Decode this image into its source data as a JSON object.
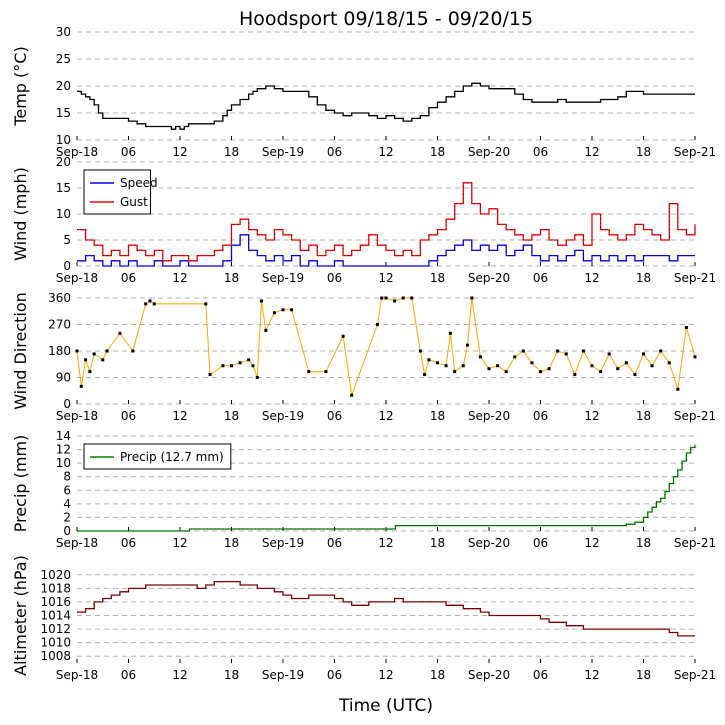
{
  "title": "Hoodsport 09/18/15 - 09/20/15",
  "x_axis": {
    "label": "Time (UTC)",
    "range_hours": [
      0,
      72
    ],
    "tick_labels": [
      "Sep-18",
      "06",
      "12",
      "18",
      "Sep-19",
      "06",
      "12",
      "18",
      "Sep-20",
      "06",
      "12",
      "18",
      "Sep-21"
    ]
  },
  "colors": {
    "temp": "#000000",
    "speed": "#0000ff",
    "gust": "#ff0000",
    "direction": "#ffa500",
    "precip": "#008000",
    "altimeter": "#8b0000",
    "grid": "#b0b0b0"
  },
  "chart_data": [
    {
      "type": "line",
      "ylabel": "Temp (°C)",
      "ylim": [
        10,
        30
      ],
      "yticks": [
        "10",
        "15",
        "20",
        "25",
        "30"
      ],
      "series": [
        {
          "name": "Temp",
          "color": "#000000",
          "x": [
            0,
            0.5,
            1,
            1.5,
            2,
            2.5,
            3,
            4,
            5,
            6,
            7,
            8,
            9,
            10,
            11,
            11.5,
            12,
            12.5,
            13,
            14,
            15,
            16,
            17,
            17.5,
            18,
            19,
            20,
            20.5,
            21,
            22,
            23,
            24,
            25,
            26,
            27,
            28,
            29,
            30,
            31,
            32,
            33,
            34,
            35,
            36,
            37,
            38,
            39,
            40,
            41,
            42,
            43,
            44,
            45,
            46,
            47,
            48,
            49,
            50,
            51,
            52,
            53,
            54,
            55,
            56,
            57,
            58,
            59,
            60,
            61,
            62,
            63,
            64,
            65,
            66,
            67,
            68,
            69,
            70,
            71,
            72
          ],
          "y": [
            19,
            18.5,
            18,
            17.5,
            16.5,
            15,
            14,
            14,
            14,
            13.5,
            13,
            12.5,
            12.5,
            12.5,
            12,
            12.5,
            12,
            12.5,
            13,
            13,
            13,
            13.5,
            14.5,
            15.5,
            16.5,
            17.5,
            18.5,
            19,
            19.5,
            20,
            19.5,
            19,
            19,
            19,
            18,
            16.5,
            15.5,
            15,
            14.5,
            15,
            15,
            14.5,
            14,
            14.5,
            14,
            13.5,
            14,
            14.5,
            16,
            17,
            18,
            19,
            20,
            20.5,
            20,
            19.5,
            19.5,
            19.5,
            18.5,
            17.5,
            17,
            17,
            17,
            17.5,
            17,
            17,
            17,
            17,
            17.5,
            17.5,
            18,
            19,
            19,
            18.5,
            18.5,
            18.5,
            18.5,
            18.5,
            18.5,
            18.5
          ]
        }
      ]
    },
    {
      "type": "line",
      "ylabel": "Wind (mph)",
      "ylim": [
        0,
        20
      ],
      "yticks": [
        "0",
        "5",
        "10",
        "15",
        "20"
      ],
      "legend": [
        "Speed",
        "Gust"
      ],
      "series": [
        {
          "name": "Speed",
          "color": "#0000ff",
          "x": [
            0,
            1,
            2,
            3,
            4,
            5,
            6,
            7,
            8,
            9,
            10,
            11,
            12,
            13,
            14,
            15,
            16,
            17,
            18,
            19,
            20,
            21,
            22,
            23,
            24,
            25,
            26,
            27,
            28,
            29,
            30,
            31,
            32,
            33,
            34,
            35,
            36,
            37,
            38,
            39,
            40,
            41,
            42,
            43,
            44,
            45,
            46,
            47,
            48,
            49,
            50,
            51,
            52,
            53,
            54,
            55,
            56,
            57,
            58,
            59,
            60,
            61,
            62,
            63,
            64,
            65,
            66,
            67,
            68,
            69,
            70,
            71,
            72
          ],
          "y": [
            1,
            2,
            1,
            0,
            1,
            0,
            1,
            0,
            0,
            1,
            0,
            0,
            1,
            0,
            0,
            0,
            0,
            1,
            4,
            6,
            3,
            2,
            1,
            2,
            1,
            2,
            0,
            1,
            0,
            0,
            1,
            0,
            0,
            0,
            0,
            0,
            0,
            0,
            0,
            0,
            0,
            1,
            2,
            3,
            4,
            5,
            3,
            4,
            3,
            4,
            2,
            3,
            4,
            2,
            1,
            2,
            1,
            2,
            3,
            1,
            2,
            1,
            2,
            1,
            2,
            1,
            2,
            2,
            2,
            1,
            2,
            2,
            2
          ]
        },
        {
          "name": "Gust",
          "color": "#ff0000",
          "x": [
            0,
            1,
            2,
            3,
            4,
            5,
            6,
            7,
            8,
            9,
            10,
            11,
            12,
            13,
            14,
            15,
            16,
            17,
            18,
            19,
            20,
            21,
            22,
            23,
            24,
            25,
            26,
            27,
            28,
            29,
            30,
            31,
            32,
            33,
            34,
            35,
            36,
            37,
            38,
            39,
            40,
            41,
            42,
            43,
            44,
            45,
            46,
            47,
            48,
            49,
            50,
            51,
            52,
            53,
            54,
            55,
            56,
            57,
            58,
            59,
            60,
            61,
            62,
            63,
            64,
            65,
            66,
            67,
            68,
            69,
            70,
            71,
            72
          ],
          "y": [
            7,
            5,
            4,
            2,
            3,
            2,
            4,
            3,
            2,
            3,
            1,
            2,
            2,
            1,
            2,
            2,
            3,
            4,
            8,
            9,
            7,
            6,
            5,
            7,
            6,
            5,
            3,
            4,
            2,
            3,
            4,
            2,
            3,
            4,
            6,
            4,
            3,
            2,
            3,
            2,
            5,
            6,
            7,
            9,
            12,
            16,
            12,
            10,
            11,
            8,
            7,
            6,
            5,
            6,
            7,
            5,
            4,
            5,
            6,
            4,
            10,
            7,
            6,
            5,
            6,
            8,
            7,
            6,
            5,
            12,
            7,
            6,
            8
          ]
        }
      ]
    },
    {
      "type": "scatter",
      "ylabel": "Wind Direction",
      "ylim": [
        0,
        360
      ],
      "yticks": [
        "0",
        "90",
        "180",
        "270",
        "360"
      ],
      "series": [
        {
          "name": "Direction",
          "color": "#ffa500",
          "x": [
            0,
            0.5,
            1,
            1.5,
            2,
            3,
            3.5,
            5,
            6.5,
            8,
            8.5,
            9,
            15,
            15.5,
            17,
            18,
            19,
            20,
            20.5,
            21,
            21.5,
            22,
            23,
            24,
            25,
            27,
            29,
            31,
            32,
            35,
            35.5,
            36,
            37,
            38,
            39,
            40,
            40.5,
            41,
            42,
            43,
            43.5,
            44,
            45,
            45.5,
            46,
            47,
            48,
            49,
            50,
            51,
            52,
            53,
            54,
            55,
            56,
            57,
            58,
            59,
            60,
            61,
            62,
            63,
            64,
            65,
            66,
            67,
            68,
            69,
            70,
            71,
            72
          ],
          "y": [
            180,
            60,
            150,
            110,
            170,
            150,
            180,
            240,
            180,
            340,
            350,
            340,
            340,
            100,
            130,
            130,
            140,
            150,
            130,
            90,
            350,
            250,
            310,
            320,
            320,
            110,
            110,
            230,
            30,
            270,
            360,
            360,
            350,
            360,
            360,
            180,
            100,
            150,
            140,
            130,
            240,
            110,
            130,
            200,
            360,
            160,
            120,
            130,
            110,
            160,
            180,
            140,
            110,
            120,
            180,
            170,
            100,
            180,
            130,
            110,
            170,
            120,
            140,
            100,
            170,
            130,
            180,
            140,
            50,
            260,
            160
          ]
        }
      ]
    },
    {
      "type": "line",
      "ylabel": "Precip (mm)",
      "ylim": [
        0,
        14
      ],
      "yticks": [
        "0",
        "2",
        "4",
        "6",
        "8",
        "10",
        "12",
        "14"
      ],
      "legend": [
        "Precip (12.7 mm)"
      ],
      "series": [
        {
          "name": "Precip (12.7 mm)",
          "color": "#008000",
          "x": [
            0,
            13,
            13.1,
            37,
            37.1,
            63,
            64,
            65,
            66,
            66.5,
            67,
            67.5,
            68,
            68.5,
            69,
            69.5,
            70,
            70.5,
            71,
            71.5,
            72
          ],
          "y": [
            0,
            0,
            0.3,
            0.3,
            0.8,
            0.8,
            1.0,
            1.3,
            2.0,
            2.8,
            3.5,
            4.3,
            4.8,
            5.8,
            7.0,
            8.0,
            9.0,
            10.3,
            11.5,
            12.3,
            12.7
          ]
        }
      ]
    },
    {
      "type": "line",
      "ylabel": "Altimeter (hPa)",
      "ylim": [
        1007,
        1021
      ],
      "yticks": [
        "1008",
        "1010",
        "1012",
        "1014",
        "1016",
        "1018",
        "1020"
      ],
      "series": [
        {
          "name": "Altimeter",
          "color": "#8b0000",
          "x": [
            0,
            1,
            2,
            3,
            4,
            5,
            6,
            7,
            8,
            9,
            10,
            11,
            12,
            13,
            14,
            15,
            16,
            17,
            18,
            19,
            20,
            21,
            22,
            23,
            24,
            25,
            26,
            27,
            28,
            29,
            30,
            31,
            32,
            33,
            34,
            35,
            36,
            37,
            38,
            39,
            40,
            41,
            42,
            43,
            44,
            45,
            46,
            47,
            48,
            49,
            50,
            51,
            52,
            53,
            54,
            55,
            56,
            57,
            58,
            59,
            60,
            61,
            62,
            63,
            64,
            65,
            66,
            67,
            68,
            69,
            70,
            71,
            72
          ],
          "y": [
            1014.5,
            1015,
            1016,
            1016.5,
            1017,
            1017.5,
            1018,
            1018,
            1018.5,
            1018.5,
            1018.5,
            1018.5,
            1018.5,
            1018.5,
            1018,
            1018.5,
            1019,
            1019,
            1019,
            1018.5,
            1018.5,
            1018,
            1018,
            1017.5,
            1017,
            1016.5,
            1016.5,
            1017,
            1017,
            1017,
            1016.5,
            1016,
            1015.5,
            1015.5,
            1016,
            1016,
            1016,
            1016.5,
            1016,
            1016,
            1016,
            1016,
            1016,
            1015.5,
            1015.5,
            1015,
            1015,
            1014.5,
            1014,
            1014,
            1014,
            1014,
            1014,
            1014,
            1013.5,
            1013,
            1013,
            1012.5,
            1012.5,
            1012,
            1012,
            1012,
            1012,
            1012,
            1012,
            1012,
            1012,
            1012,
            1012,
            1011.5,
            1011,
            1011,
            1011
          ]
        }
      ]
    }
  ]
}
